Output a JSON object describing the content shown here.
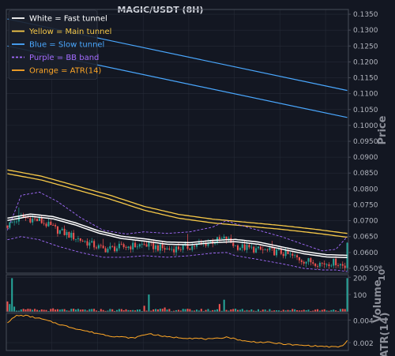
{
  "chart_data": {
    "type": "candlestick",
    "title": "MAGIC/USDT (8H)",
    "legend": {
      "placement": "top-left",
      "entries": [
        {
          "label": "White = Fast tunnel",
          "color": "#ffffff",
          "dash": false
        },
        {
          "label": "Yellow = Main tunnel",
          "color": "#f7c948",
          "dash": false
        },
        {
          "label": "Blue = Slow tunnel",
          "color": "#4aa8ff",
          "dash": false
        },
        {
          "label": "Purple = BB band",
          "color": "#a46cff",
          "dash": true
        },
        {
          "label": "Orange = ATR(14)",
          "color": "#ffa726",
          "dash": false
        }
      ]
    },
    "price_panel": {
      "ylabel": "Price",
      "ylim": [
        0.0535,
        0.1365
      ],
      "yticks": [
        "0.0550",
        "0.0600",
        "0.0650",
        "0.0700",
        "0.0750",
        "0.0800",
        "0.0850",
        "0.0900",
        "0.0950",
        "0.1000",
        "0.1050",
        "0.1100",
        "0.1150",
        "0.1200",
        "0.1250",
        "0.1300",
        "0.1350"
      ],
      "n_bars": 150,
      "close_anchors": [
        [
          0,
          0.0685
        ],
        [
          6,
          0.0712
        ],
        [
          14,
          0.07
        ],
        [
          22,
          0.067
        ],
        [
          32,
          0.064
        ],
        [
          42,
          0.061
        ],
        [
          52,
          0.0618
        ],
        [
          60,
          0.0625
        ],
        [
          70,
          0.061
        ],
        [
          80,
          0.0618
        ],
        [
          90,
          0.0635
        ],
        [
          96,
          0.0643
        ],
        [
          100,
          0.062
        ],
        [
          110,
          0.0608
        ],
        [
          120,
          0.06
        ],
        [
          130,
          0.0575
        ],
        [
          138,
          0.0565
        ],
        [
          144,
          0.057
        ],
        [
          148,
          0.0555
        ],
        [
          149,
          0.064
        ]
      ],
      "fast_tunnel": [
        [
          0,
          0.0705
        ],
        [
          10,
          0.0718
        ],
        [
          20,
          0.071
        ],
        [
          30,
          0.069
        ],
        [
          40,
          0.0665
        ],
        [
          50,
          0.0648
        ],
        [
          60,
          0.064
        ],
        [
          70,
          0.063
        ],
        [
          80,
          0.0628
        ],
        [
          90,
          0.0635
        ],
        [
          100,
          0.0638
        ],
        [
          110,
          0.063
        ],
        [
          120,
          0.0615
        ],
        [
          130,
          0.06
        ],
        [
          140,
          0.059
        ],
        [
          149,
          0.0588
        ]
      ],
      "main_tunnel": [
        [
          0,
          0.086
        ],
        [
          15,
          0.084
        ],
        [
          30,
          0.081
        ],
        [
          45,
          0.078
        ],
        [
          60,
          0.0745
        ],
        [
          75,
          0.072
        ],
        [
          90,
          0.0705
        ],
        [
          105,
          0.0695
        ],
        [
          120,
          0.0685
        ],
        [
          135,
          0.0673
        ],
        [
          149,
          0.066
        ]
      ],
      "slow_tunnel": [
        [
          0,
          0.1335
        ],
        [
          149,
          0.111
        ]
      ],
      "bb_band_upper": [
        [
          0,
          0.067
        ],
        [
          6,
          0.078
        ],
        [
          14,
          0.079
        ],
        [
          22,
          0.076
        ],
        [
          32,
          0.071
        ],
        [
          42,
          0.067
        ],
        [
          52,
          0.0658
        ],
        [
          60,
          0.0665
        ],
        [
          70,
          0.066
        ],
        [
          80,
          0.0665
        ],
        [
          90,
          0.068
        ],
        [
          96,
          0.07
        ],
        [
          100,
          0.069
        ],
        [
          110,
          0.067
        ],
        [
          120,
          0.065
        ],
        [
          130,
          0.0625
        ],
        [
          138,
          0.0605
        ],
        [
          144,
          0.061
        ],
        [
          149,
          0.065
        ]
      ],
      "bb_band_lower": [
        [
          0,
          0.064
        ],
        [
          6,
          0.065
        ],
        [
          14,
          0.064
        ],
        [
          22,
          0.062
        ],
        [
          32,
          0.06
        ],
        [
          42,
          0.0585
        ],
        [
          52,
          0.0585
        ],
        [
          60,
          0.059
        ],
        [
          70,
          0.0585
        ],
        [
          80,
          0.059
        ],
        [
          90,
          0.0598
        ],
        [
          96,
          0.06
        ],
        [
          100,
          0.059
        ],
        [
          110,
          0.0578
        ],
        [
          120,
          0.0565
        ],
        [
          130,
          0.055
        ],
        [
          138,
          0.0545
        ],
        [
          144,
          0.0545
        ],
        [
          149,
          0.054
        ]
      ]
    },
    "volume_panel": {
      "ylabel": "Volume",
      "offset_label": "10⁶",
      "ylim": [
        0,
        215
      ],
      "yticks": [
        "100",
        "200"
      ],
      "spike_anchors": [
        [
          0,
          60
        ],
        [
          1,
          45
        ],
        [
          2,
          195
        ],
        [
          3,
          30
        ],
        [
          20,
          20
        ],
        [
          60,
          35
        ],
        [
          62,
          100
        ],
        [
          69,
          25
        ],
        [
          93,
          45
        ],
        [
          95,
          70
        ],
        [
          100,
          18
        ],
        [
          149,
          195
        ]
      ]
    },
    "atr_panel": {
      "ylabel": "ATR(14)",
      "ylim": [
        0.0013,
        0.0046
      ],
      "yticks": [
        "0.002",
        "0.004"
      ],
      "atr_anchors": [
        [
          0,
          0.0038
        ],
        [
          4,
          0.0044
        ],
        [
          8,
          0.0044
        ],
        [
          15,
          0.0041
        ],
        [
          25,
          0.0035
        ],
        [
          35,
          0.003
        ],
        [
          45,
          0.0026
        ],
        [
          55,
          0.0024
        ],
        [
          62,
          0.0028
        ],
        [
          70,
          0.0025
        ],
        [
          80,
          0.0024
        ],
        [
          90,
          0.0023
        ],
        [
          96,
          0.0025
        ],
        [
          105,
          0.0021
        ],
        [
          115,
          0.002
        ],
        [
          125,
          0.0018
        ],
        [
          135,
          0.0017
        ],
        [
          144,
          0.0016
        ],
        [
          147,
          0.0017
        ],
        [
          149,
          0.0022
        ]
      ]
    }
  }
}
